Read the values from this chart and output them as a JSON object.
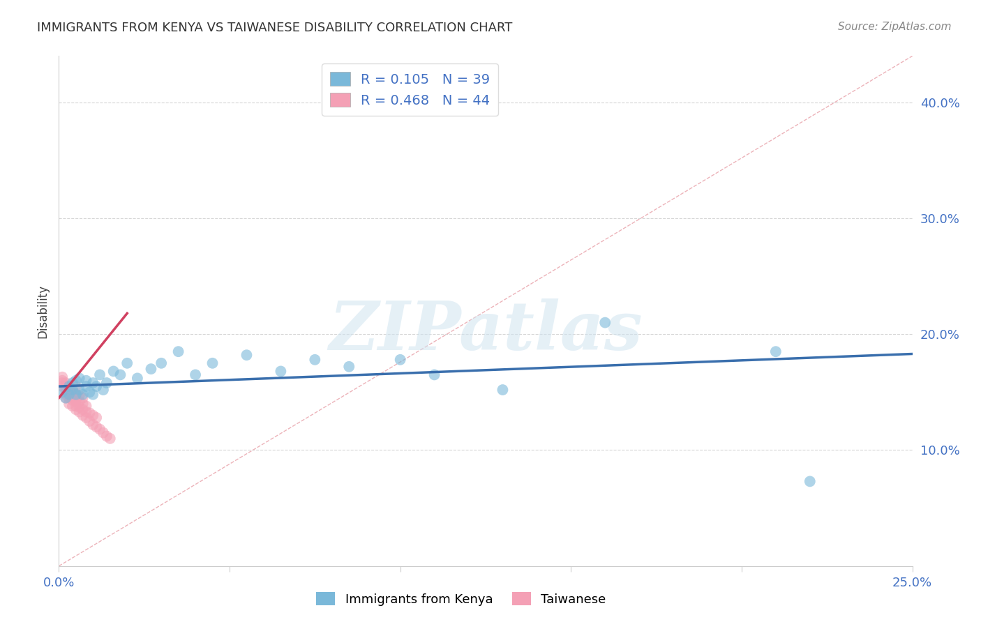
{
  "title": "IMMIGRANTS FROM KENYA VS TAIWANESE DISABILITY CORRELATION CHART",
  "source": "Source: ZipAtlas.com",
  "xlabel_label": "Immigrants from Kenya",
  "ylabel_label": "Disability",
  "xlim": [
    0.0,
    0.25
  ],
  "ylim": [
    0.0,
    0.44
  ],
  "yticks": [
    0.1,
    0.2,
    0.3,
    0.4
  ],
  "xticks": [
    0.0,
    0.05,
    0.1,
    0.15,
    0.2,
    0.25
  ],
  "ytick_labels": [
    "10.0%",
    "20.0%",
    "30.0%",
    "40.0%"
  ],
  "xtick_labels": [
    "0.0%",
    "",
    "",
    "",
    "",
    "25.0%"
  ],
  "legend_r_blue": "0.105",
  "legend_n_blue": "39",
  "legend_r_pink": "0.468",
  "legend_n_pink": "44",
  "blue_color": "#7ab8d9",
  "pink_color": "#f4a0b5",
  "blue_line_color": "#3a6fad",
  "pink_line_color": "#d04060",
  "pink_dash_color": "#e8a0a8",
  "watermark_text": "ZIPatlas",
  "kenya_x": [
    0.001,
    0.002,
    0.003,
    0.003,
    0.004,
    0.004,
    0.005,
    0.005,
    0.006,
    0.006,
    0.007,
    0.008,
    0.008,
    0.009,
    0.01,
    0.01,
    0.011,
    0.012,
    0.013,
    0.014,
    0.016,
    0.018,
    0.02,
    0.023,
    0.027,
    0.03,
    0.035,
    0.04,
    0.045,
    0.055,
    0.065,
    0.075,
    0.085,
    0.1,
    0.11,
    0.13,
    0.16,
    0.21,
    0.22
  ],
  "kenya_y": [
    0.15,
    0.145,
    0.155,
    0.148,
    0.152,
    0.158,
    0.148,
    0.16,
    0.152,
    0.162,
    0.148,
    0.155,
    0.16,
    0.15,
    0.148,
    0.158,
    0.155,
    0.165,
    0.152,
    0.158,
    0.168,
    0.165,
    0.175,
    0.162,
    0.17,
    0.175,
    0.185,
    0.165,
    0.175,
    0.182,
    0.168,
    0.178,
    0.172,
    0.178,
    0.165,
    0.152,
    0.21,
    0.185,
    0.073
  ],
  "taiwan_x": [
    0.001,
    0.001,
    0.001,
    0.001,
    0.002,
    0.002,
    0.002,
    0.002,
    0.002,
    0.003,
    0.003,
    0.003,
    0.003,
    0.004,
    0.004,
    0.004,
    0.004,
    0.005,
    0.005,
    0.005,
    0.005,
    0.005,
    0.005,
    0.006,
    0.006,
    0.006,
    0.006,
    0.007,
    0.007,
    0.007,
    0.007,
    0.008,
    0.008,
    0.008,
    0.009,
    0.009,
    0.01,
    0.01,
    0.011,
    0.011,
    0.012,
    0.013,
    0.014,
    0.015
  ],
  "taiwan_y": [
    0.155,
    0.158,
    0.16,
    0.163,
    0.145,
    0.148,
    0.152,
    0.155,
    0.158,
    0.14,
    0.145,
    0.148,
    0.152,
    0.138,
    0.143,
    0.147,
    0.152,
    0.135,
    0.138,
    0.142,
    0.145,
    0.148,
    0.155,
    0.133,
    0.137,
    0.142,
    0.147,
    0.13,
    0.135,
    0.14,
    0.145,
    0.128,
    0.133,
    0.138,
    0.125,
    0.132,
    0.122,
    0.13,
    0.12,
    0.128,
    0.118,
    0.115,
    0.112,
    0.11
  ],
  "blue_line_x": [
    0.0,
    0.25
  ],
  "blue_line_y": [
    0.155,
    0.183
  ],
  "pink_line_x": [
    0.0,
    0.02
  ],
  "pink_line_y": [
    0.145,
    0.218
  ]
}
